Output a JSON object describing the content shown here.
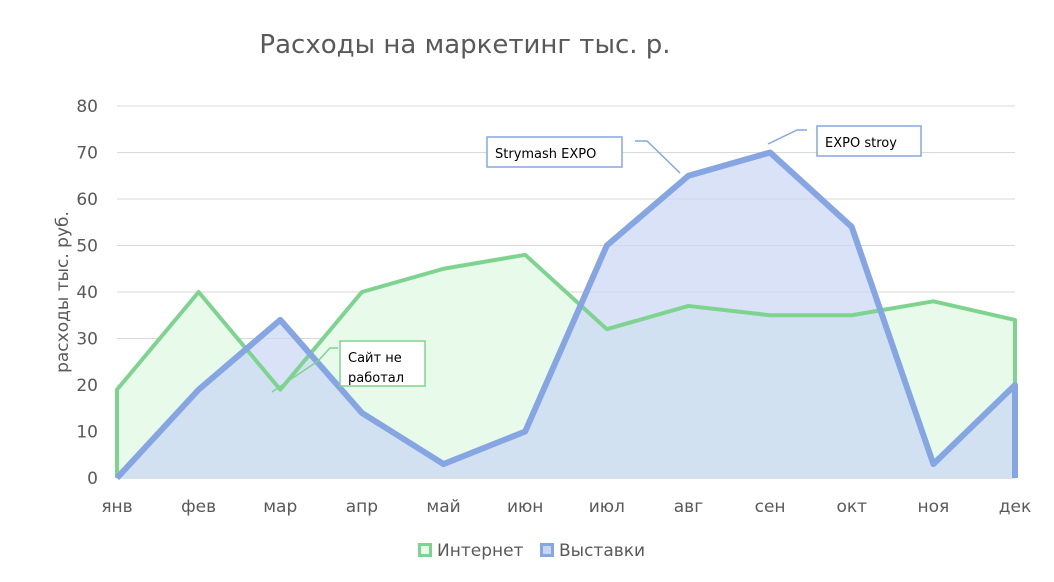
{
  "chart_data": {
    "type": "area",
    "title": "Расходы на маркетинг  тыс. р.",
    "xlabel": "",
    "ylabel": "расходы тыс. руб.",
    "ylim": [
      0,
      80
    ],
    "yticks": [
      0,
      10,
      20,
      30,
      40,
      50,
      60,
      70,
      80
    ],
    "grid": true,
    "legend_position": "bottom",
    "categories": [
      "янв",
      "фев",
      "мар",
      "апр",
      "май",
      "июн",
      "июл",
      "авг",
      "сен",
      "окт",
      "ноя",
      "дек"
    ],
    "series": [
      {
        "name": "Интернет",
        "color": "#7ed48f",
        "fill": "#e8fbea",
        "values": [
          19,
          40,
          19,
          40,
          45,
          48,
          32,
          37,
          35,
          35,
          38,
          34
        ]
      },
      {
        "name": "Выставки",
        "color": "#86a6e3",
        "fill": "#c9d6f3",
        "values": [
          0,
          19,
          34,
          14,
          3,
          10,
          50,
          65,
          70,
          54,
          3,
          20
        ]
      }
    ],
    "annotations": [
      {
        "text_lines": [
          "Сайт не",
          "работал"
        ],
        "series": 0,
        "category": "мар",
        "border_color": "#7ed48f"
      },
      {
        "text_lines": [
          "Strymash EXPO"
        ],
        "series": 1,
        "category": "авг",
        "border_color": "#86a6e3"
      },
      {
        "text_lines": [
          "EXPO stroy"
        ],
        "series": 1,
        "category": "сен",
        "border_color": "#86a6e3"
      }
    ]
  }
}
